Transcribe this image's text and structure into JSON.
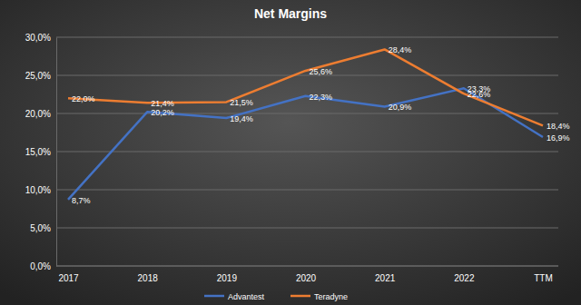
{
  "chart_data": {
    "type": "line",
    "title": "Net Margins",
    "categories": [
      "2017",
      "2018",
      "2019",
      "2020",
      "2021",
      "2022",
      "TTM"
    ],
    "series": [
      {
        "name": "Advantest",
        "color": "#4472c4",
        "values": [
          8.7,
          20.2,
          19.4,
          22.3,
          20.9,
          23.3,
          16.9
        ],
        "value_labels": [
          "8,7%",
          "20,2%",
          "19,4%",
          "22,3%",
          "20,9%",
          "23,3%",
          "16,9%"
        ]
      },
      {
        "name": "Teradyne",
        "color": "#ed7d31",
        "values": [
          22.0,
          21.4,
          21.5,
          25.6,
          28.4,
          22.6,
          18.4
        ],
        "value_labels": [
          "22,0%",
          "21,4%",
          "21,5%",
          "25,6%",
          "28,4%",
          "22,6%",
          "18,4%"
        ]
      }
    ],
    "ylim": [
      0,
      30
    ],
    "yticks": [
      {
        "value": 0,
        "label": "0,0%"
      },
      {
        "value": 5,
        "label": "5,0%"
      },
      {
        "value": 10,
        "label": "10,0%"
      },
      {
        "value": 15,
        "label": "15,0%"
      },
      {
        "value": 20,
        "label": "20,0%"
      },
      {
        "value": 25,
        "label": "25,0%"
      },
      {
        "value": 30,
        "label": "30,0%"
      }
    ],
    "grid": true,
    "legend": "bottom",
    "data_labels": true
  }
}
